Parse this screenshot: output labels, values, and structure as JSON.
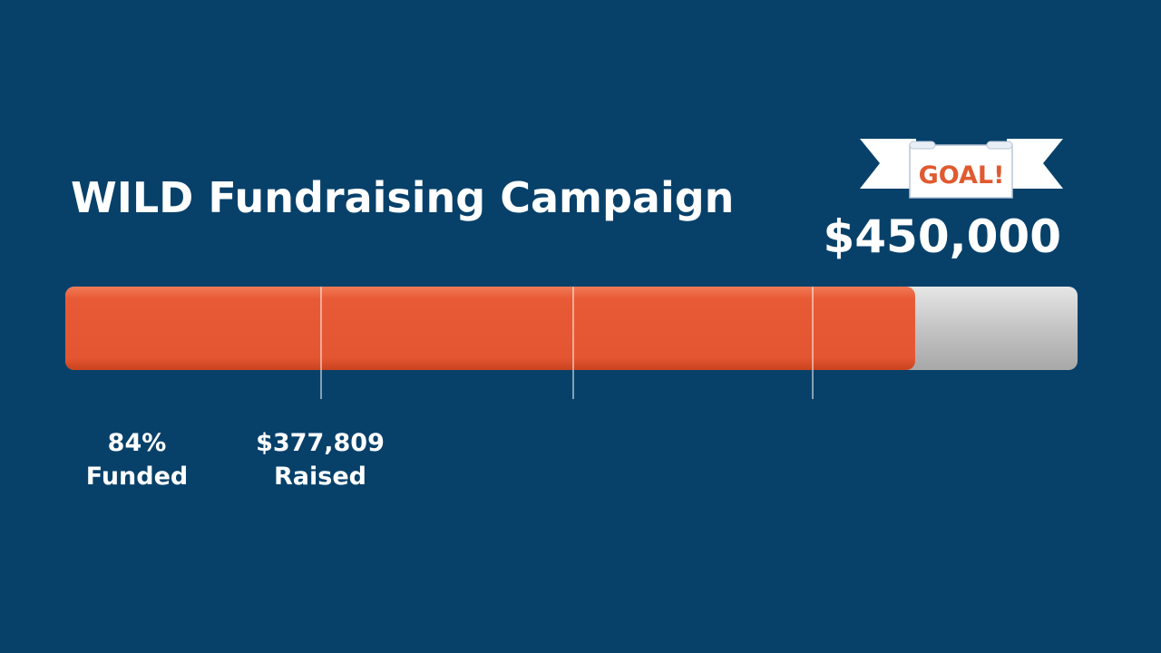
{
  "title": "WILD Fundraising Campaign",
  "goal": {
    "banner": "GOAL!",
    "value": 450000,
    "label": "$450,000"
  },
  "funded": {
    "label": "84%",
    "caption": "Funded"
  },
  "raised": {
    "value": 377809,
    "label": "$377,809",
    "caption": "Raised"
  }
}
